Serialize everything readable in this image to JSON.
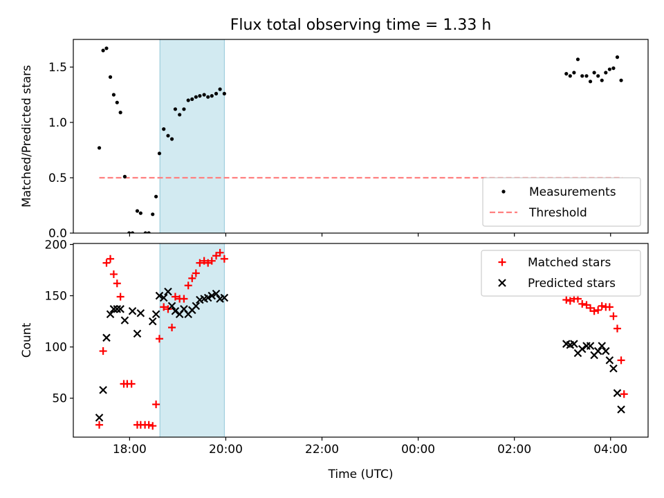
{
  "title": "Flux total observing time = 1.33 h",
  "xlabel": "Time (UTC)",
  "x_ticks": [
    {
      "h": 18,
      "label": "18:00"
    },
    {
      "h": 20,
      "label": "20:00"
    },
    {
      "h": 22,
      "label": "22:00"
    },
    {
      "h": 24,
      "label": "00:00"
    },
    {
      "h": 26,
      "label": "02:00"
    },
    {
      "h": 28,
      "label": "04:00"
    }
  ],
  "xlim": [
    16.83,
    28.78
  ],
  "highlight_span": {
    "from": 18.63,
    "to": 19.97,
    "color": "#add8e6"
  },
  "chart_data": [
    {
      "type": "scatter",
      "ylabel": "Matched/Predicted stars",
      "ylim": [
        0,
        1.75
      ],
      "yticks": [
        {
          "v": 0,
          "label": "0.0"
        },
        {
          "v": 0.5,
          "label": "0.5"
        },
        {
          "v": 1.0,
          "label": "1.0"
        },
        {
          "v": 1.5,
          "label": "1.5"
        }
      ],
      "threshold": {
        "label": "Threshold",
        "value": 0.5,
        "x_from": 17.37,
        "x_to": 28.25,
        "color": "#ff7f7f"
      },
      "legend": {
        "position": "lower-right",
        "measurements_label": "Measurements",
        "threshold_label": "Threshold"
      },
      "series": [
        {
          "name": "Measurements",
          "color": "#000000",
          "points": [
            [
              17.37,
              0.77
            ],
            [
              17.45,
              1.65
            ],
            [
              17.52,
              1.67
            ],
            [
              17.6,
              1.41
            ],
            [
              17.67,
              1.25
            ],
            [
              17.74,
              1.18
            ],
            [
              17.81,
              1.09
            ],
            [
              17.9,
              0.51
            ],
            [
              17.99,
              0.0
            ],
            [
              18.06,
              0.0
            ],
            [
              18.16,
              0.2
            ],
            [
              18.23,
              0.18
            ],
            [
              18.33,
              0.0
            ],
            [
              18.4,
              0.0
            ],
            [
              18.48,
              0.17
            ],
            [
              18.55,
              0.33
            ],
            [
              18.62,
              0.72
            ],
            [
              18.71,
              0.94
            ],
            [
              18.8,
              0.88
            ],
            [
              18.88,
              0.85
            ],
            [
              18.95,
              1.12
            ],
            [
              19.04,
              1.07
            ],
            [
              19.13,
              1.12
            ],
            [
              19.22,
              1.2
            ],
            [
              19.3,
              1.21
            ],
            [
              19.38,
              1.23
            ],
            [
              19.46,
              1.24
            ],
            [
              19.55,
              1.25
            ],
            [
              19.63,
              1.23
            ],
            [
              19.71,
              1.24
            ],
            [
              19.8,
              1.26
            ],
            [
              19.88,
              1.3
            ],
            [
              19.97,
              1.26
            ],
            [
              27.08,
              1.44
            ],
            [
              27.16,
              1.42
            ],
            [
              27.24,
              1.45
            ],
            [
              27.32,
              1.57
            ],
            [
              27.41,
              1.42
            ],
            [
              27.5,
              1.42
            ],
            [
              27.58,
              1.37
            ],
            [
              27.66,
              1.45
            ],
            [
              27.74,
              1.42
            ],
            [
              27.82,
              1.38
            ],
            [
              27.9,
              1.45
            ],
            [
              27.98,
              1.48
            ],
            [
              28.06,
              1.49
            ],
            [
              28.14,
              1.59
            ],
            [
              28.22,
              1.38
            ]
          ]
        }
      ]
    },
    {
      "type": "scatter",
      "ylabel": "Count",
      "ylim": [
        12,
        201
      ],
      "yticks": [
        {
          "v": 50,
          "label": "50"
        },
        {
          "v": 100,
          "label": "100"
        },
        {
          "v": 150,
          "label": "150"
        },
        {
          "v": 200,
          "label": "200"
        }
      ],
      "legend": {
        "position": "upper-right",
        "matched_label": "Matched stars",
        "predicted_label": "Predicted stars"
      },
      "series": [
        {
          "name": "Matched stars",
          "marker": "+",
          "color": "#ff0000",
          "points": [
            [
              17.37,
              24
            ],
            [
              17.45,
              96
            ],
            [
              17.52,
              182
            ],
            [
              17.6,
              186
            ],
            [
              17.67,
              171
            ],
            [
              17.74,
              162
            ],
            [
              17.81,
              149
            ],
            [
              17.88,
              64
            ],
            [
              17.95,
              64
            ],
            [
              18.04,
              64
            ],
            [
              18.16,
              24
            ],
            [
              18.23,
              24
            ],
            [
              18.32,
              24
            ],
            [
              18.4,
              24
            ],
            [
              18.48,
              23
            ],
            [
              18.55,
              44
            ],
            [
              18.62,
              108
            ],
            [
              18.71,
              139
            ],
            [
              18.8,
              137
            ],
            [
              18.88,
              119
            ],
            [
              18.95,
              149
            ],
            [
              19.04,
              147
            ],
            [
              19.13,
              147
            ],
            [
              19.22,
              160
            ],
            [
              19.3,
              167
            ],
            [
              19.38,
              172
            ],
            [
              19.46,
              182
            ],
            [
              19.55,
              184
            ],
            [
              19.63,
              182
            ],
            [
              19.71,
              184
            ],
            [
              19.8,
              189
            ],
            [
              19.88,
              192
            ],
            [
              19.97,
              186
            ],
            [
              27.08,
              146
            ],
            [
              27.16,
              145
            ],
            [
              27.24,
              147
            ],
            [
              27.32,
              147
            ],
            [
              27.41,
              142
            ],
            [
              27.5,
              141
            ],
            [
              27.58,
              138
            ],
            [
              27.66,
              135
            ],
            [
              27.74,
              136
            ],
            [
              27.82,
              140
            ],
            [
              27.9,
              139
            ],
            [
              27.98,
              139
            ],
            [
              28.06,
              130
            ],
            [
              28.14,
              118
            ],
            [
              28.22,
              87
            ],
            [
              28.28,
              54
            ]
          ]
        },
        {
          "name": "Predicted stars",
          "marker": "x",
          "color": "#000000",
          "points": [
            [
              17.37,
              31
            ],
            [
              17.45,
              58
            ],
            [
              17.52,
              109
            ],
            [
              17.6,
              132
            ],
            [
              17.67,
              137
            ],
            [
              17.74,
              137
            ],
            [
              17.81,
              137
            ],
            [
              17.9,
              126
            ],
            [
              18.06,
              135
            ],
            [
              18.16,
              113
            ],
            [
              18.23,
              133
            ],
            [
              18.48,
              125
            ],
            [
              18.55,
              132
            ],
            [
              18.62,
              150
            ],
            [
              18.71,
              148
            ],
            [
              18.8,
              154
            ],
            [
              18.88,
              140
            ],
            [
              18.95,
              135
            ],
            [
              19.04,
              132
            ],
            [
              19.13,
              137
            ],
            [
              19.22,
              132
            ],
            [
              19.3,
              136
            ],
            [
              19.38,
              140
            ],
            [
              19.46,
              146
            ],
            [
              19.55,
              147
            ],
            [
              19.63,
              148
            ],
            [
              19.71,
              150
            ],
            [
              19.8,
              152
            ],
            [
              19.88,
              147
            ],
            [
              19.97,
              148
            ],
            [
              27.08,
              103
            ],
            [
              27.16,
              102
            ],
            [
              27.24,
              103
            ],
            [
              27.32,
              94
            ],
            [
              27.41,
              98
            ],
            [
              27.5,
              101
            ],
            [
              27.58,
              101
            ],
            [
              27.66,
              92
            ],
            [
              27.74,
              96
            ],
            [
              27.82,
              101
            ],
            [
              27.9,
              96
            ],
            [
              27.98,
              87
            ],
            [
              28.06,
              79
            ],
            [
              28.14,
              55
            ],
            [
              28.22,
              39
            ]
          ]
        }
      ]
    }
  ]
}
